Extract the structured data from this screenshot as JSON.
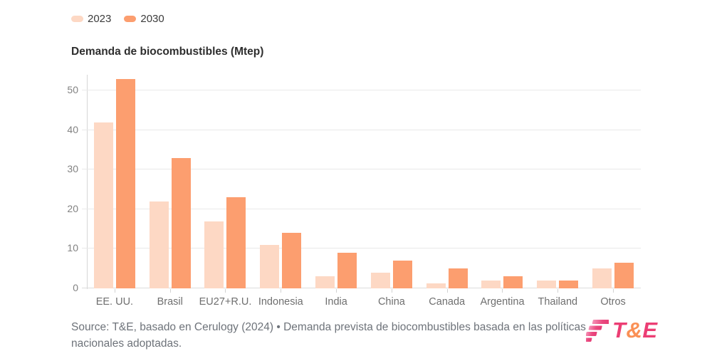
{
  "chart_data": {
    "type": "bar",
    "title": "Demanda de biocombustibles (Mtep)",
    "categories": [
      "EE. UU.",
      "Brasil",
      "EU27+R.U.",
      "Indonesia",
      "India",
      "China",
      "Canada",
      "Argentina",
      "Thailand",
      "Otros"
    ],
    "series": [
      {
        "name": "2023",
        "color": "#fdd8c4",
        "values": [
          42,
          22,
          17,
          11,
          3,
          4,
          1.3,
          2,
          2,
          5
        ]
      },
      {
        "name": "2030",
        "color": "#fc9e6f",
        "values": [
          53,
          33,
          23,
          14,
          9,
          7,
          5,
          3,
          1.9,
          6.5
        ]
      }
    ],
    "xlabel": "",
    "ylabel": "",
    "ylim": [
      0,
      54
    ],
    "yticks": [
      0,
      10,
      20,
      30,
      40,
      50
    ],
    "grid": true,
    "legend_position": "top-left"
  },
  "footer": {
    "source_text": "Source: T&E, basado en Cerulogy (2024) • Demanda prevista de biocombustibles basada en las políticas nacionales adoptadas."
  },
  "logo": {
    "t": "T",
    "amp": "&",
    "e": "E"
  },
  "colors": {
    "bar_2023": "#fdd8c4",
    "bar_2030": "#fc9e6f",
    "grid": "#e9e9e9",
    "axis": "#d6d6d6",
    "tick_text": "#828282",
    "xlabel_text": "#6f6f6f",
    "title_text": "#2e2e2e",
    "footer_text": "#6e737a",
    "logo_pink": "#ec3e74",
    "logo_orange": "#fa9055"
  }
}
